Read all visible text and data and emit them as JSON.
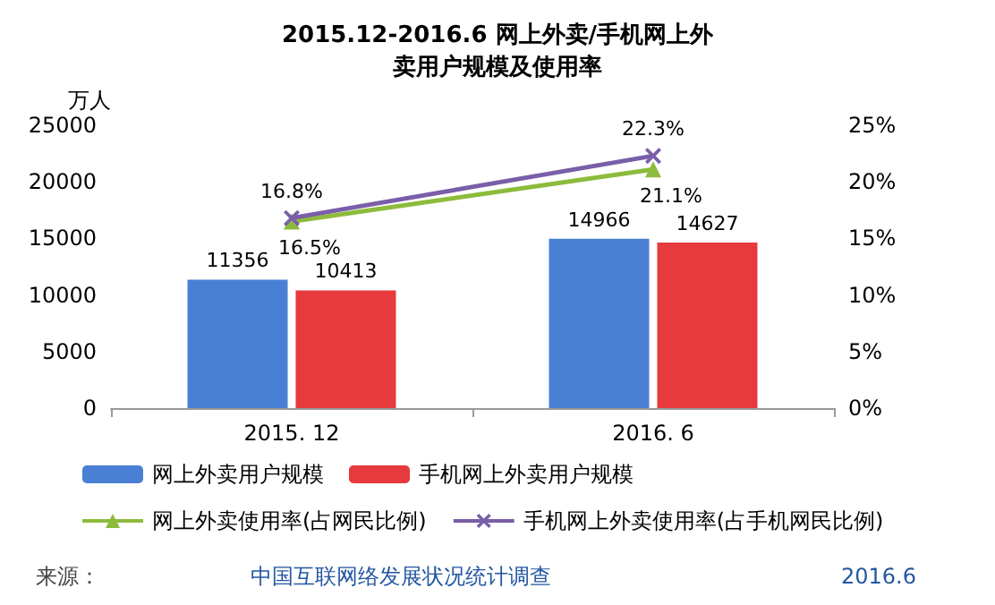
{
  "chart_data": {
    "type": "bar",
    "title": "2015.12-2016.6 网上外卖/手机网上外卖用户规模及使用率",
    "ylabel": "万人",
    "categories": [
      "2015. 12",
      "2016. 6"
    ],
    "series": [
      {
        "name": "网上外卖用户规模",
        "color": "#4a80d4",
        "values": [
          11356,
          14966
        ],
        "value_labels": [
          "11356",
          "14966"
        ]
      },
      {
        "name": "手机网上外卖用户规模",
        "color": "#e63a3c",
        "values": [
          10413,
          14627
        ],
        "value_labels": [
          "10413",
          "14627"
        ]
      },
      {
        "name": "网上外卖使用率(占网民比例)",
        "type": "line",
        "axis": "y2",
        "color": "#8dbb3c",
        "marker": "triangle",
        "values": [
          16.5,
          21.1
        ],
        "value_labels": [
          "16.5%",
          "21.1%"
        ]
      },
      {
        "name": "手机网上外卖使用率(占手机网民比例)",
        "type": "line",
        "axis": "y2",
        "color": "#7a5ea8",
        "marker": "cross",
        "values": [
          16.8,
          22.3
        ],
        "value_labels": [
          "16.8%",
          "22.3%"
        ]
      }
    ],
    "ylim": [
      0,
      25000
    ],
    "yticks": [
      0,
      5000,
      10000,
      15000,
      20000,
      25000
    ],
    "y2lim": [
      0,
      25
    ],
    "y2ticks": [
      {
        "value": 0,
        "label": "0%"
      },
      {
        "value": 5,
        "label": "5%"
      },
      {
        "value": 10,
        "label": "10%"
      },
      {
        "value": 15,
        "label": "15%"
      },
      {
        "value": 20,
        "label": "20%"
      },
      {
        "value": 25,
        "label": "25%"
      }
    ],
    "grid": false,
    "legend": "bottom",
    "annotations": [
      "来源：",
      "中国互联网络发展状况统计调查",
      "2016.6"
    ]
  }
}
